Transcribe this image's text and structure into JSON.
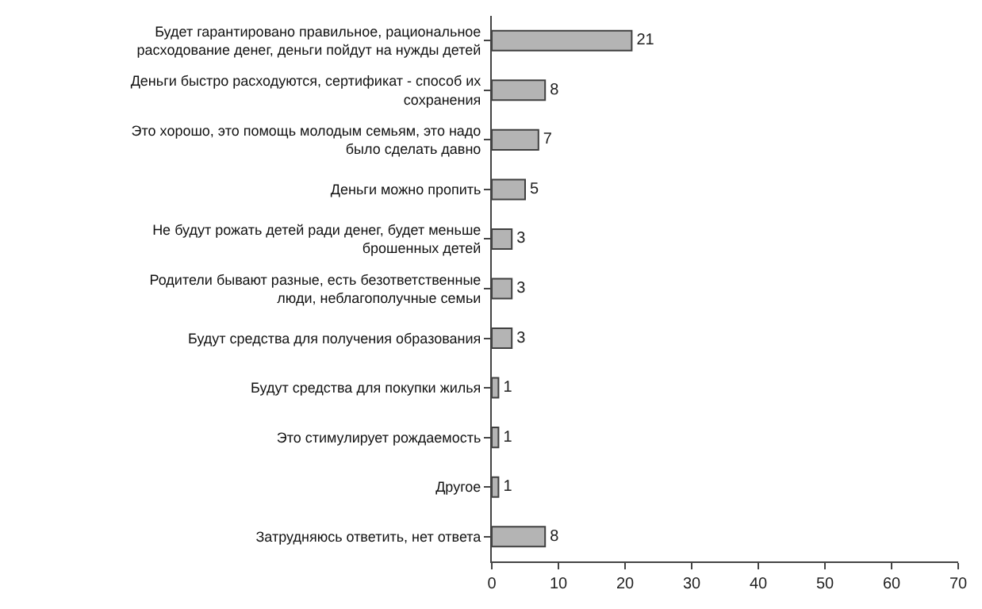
{
  "chart_data": {
    "type": "bar",
    "orientation": "horizontal",
    "categories": [
      "Будет гарантировано правильное, рациональное расходование денег, деньги пойдут на нужды детей",
      "Деньги быстро расходуются, сертификат - способ их сохранения",
      "Это хорошо, это помощь молодым семьям, это надо было сделать давно",
      "Деньги можно пропить",
      "Не будут рожать детей ради денег, будет меньше брошенных детей",
      "Родители бывают разные, есть безответственные люди, неблагополучные семьи",
      "Будут средства для получения образования",
      "Будут средства для покупки жилья",
      "Это стимулирует рождаемость",
      "Другое",
      "Затрудняюсь ответить, нет ответа"
    ],
    "values": [
      21,
      8,
      7,
      5,
      3,
      3,
      3,
      1,
      1,
      1,
      8
    ],
    "color": "#b4b4b4",
    "data_labels": true,
    "xlim": [
      0,
      70
    ],
    "xticks": [
      0,
      10,
      20,
      30,
      40,
      50,
      60,
      70
    ]
  }
}
